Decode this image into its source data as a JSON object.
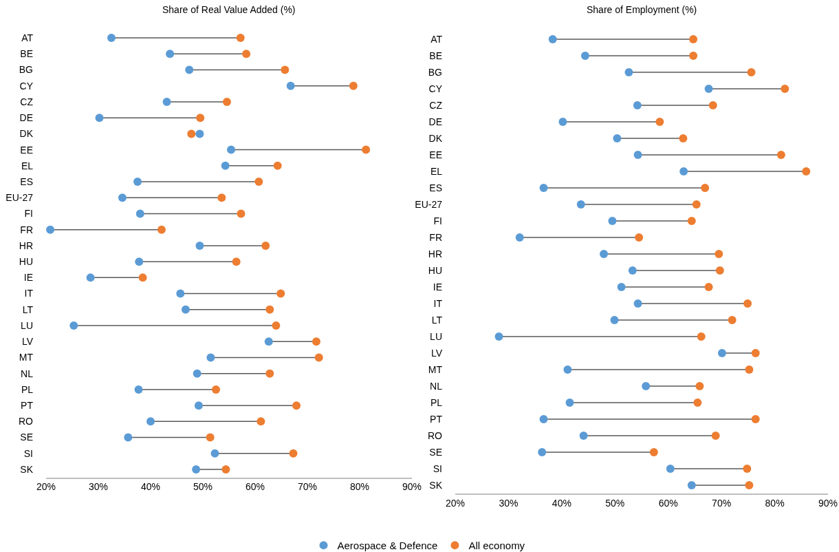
{
  "chart_data": [
    {
      "type": "scatter",
      "orientation": "horizontal",
      "title": "Share of Real Value Added (%)",
      "marker": "circle",
      "grid": false,
      "legend": "bottom",
      "xlim": [
        20,
        90
      ],
      "xticks": [
        {
          "value": 20,
          "label": "20%"
        },
        {
          "value": 30,
          "label": "30%"
        },
        {
          "value": 40,
          "label": "40%"
        },
        {
          "value": 50,
          "label": "50%"
        },
        {
          "value": 60,
          "label": "60%"
        },
        {
          "value": 70,
          "label": "70%"
        },
        {
          "value": 80,
          "label": "80%"
        },
        {
          "value": 90,
          "label": "90%"
        }
      ],
      "categories": [
        "AT",
        "BE",
        "BG",
        "CY",
        "CZ",
        "DE",
        "DK",
        "EE",
        "EL",
        "ES",
        "EU-27",
        "FI",
        "FR",
        "HR",
        "HU",
        "IE",
        "IT",
        "LT",
        "LU",
        "LV",
        "MT",
        "NL",
        "PL",
        "PT",
        "RO",
        "SE",
        "SI",
        "SK"
      ],
      "series": [
        {
          "name": "Aerospace & Defence",
          "color": "#5b9bd5",
          "values": [
            32.5,
            43.7,
            47.4,
            66.8,
            43.1,
            30.2,
            49.4,
            55.4,
            54.3,
            37.5,
            34.6,
            38.0,
            20.8,
            49.4,
            37.8,
            28.5,
            45.7,
            46.7,
            25.3,
            62.6,
            51.5,
            48.9,
            37.7,
            49.2,
            40.0,
            35.7,
            52.3,
            48.7
          ]
        },
        {
          "name": "All economy",
          "color": "#ed7d31",
          "values": [
            57.2,
            58.3,
            65.7,
            78.8,
            54.6,
            49.5,
            47.8,
            81.2,
            64.3,
            60.7,
            53.6,
            57.3,
            42.1,
            62.0,
            56.4,
            38.5,
            64.9,
            62.8,
            64.0,
            71.7,
            72.2,
            62.8,
            52.5,
            67.9,
            61.1,
            51.4,
            67.3,
            54.4
          ]
        }
      ]
    },
    {
      "type": "scatter",
      "orientation": "horizontal",
      "title": "Share of Employment (%)",
      "marker": "circle",
      "grid": false,
      "legend": "bottom",
      "xlim": [
        20,
        90
      ],
      "xticks": [
        {
          "value": 20,
          "label": "20%"
        },
        {
          "value": 30,
          "label": "30%"
        },
        {
          "value": 40,
          "label": "40%"
        },
        {
          "value": 50,
          "label": "50%"
        },
        {
          "value": 60,
          "label": "60%"
        },
        {
          "value": 70,
          "label": "70%"
        },
        {
          "value": 80,
          "label": "80%"
        },
        {
          "value": 90,
          "label": "90%"
        }
      ],
      "categories": [
        "AT",
        "BE",
        "BG",
        "CY",
        "CZ",
        "DE",
        "DK",
        "EE",
        "EL",
        "ES",
        "EU-27",
        "FI",
        "FR",
        "HR",
        "HU",
        "IE",
        "IT",
        "LT",
        "LU",
        "LV",
        "MT",
        "NL",
        "PL",
        "PT",
        "RO",
        "SE",
        "SI",
        "SK"
      ],
      "series": [
        {
          "name": "Aerospace & Defence",
          "color": "#5b9bd5",
          "values": [
            38.3,
            44.4,
            52.6,
            67.6,
            54.2,
            40.2,
            50.4,
            54.3,
            62.9,
            36.6,
            43.6,
            49.5,
            32.1,
            47.9,
            53.3,
            51.2,
            54.3,
            49.9,
            28.2,
            70.1,
            41.1,
            55.8,
            41.5,
            36.6,
            44.1,
            36.3,
            60.4,
            64.4
          ]
        },
        {
          "name": "All economy",
          "color": "#ed7d31",
          "values": [
            64.7,
            64.7,
            75.6,
            81.9,
            68.4,
            58.4,
            62.8,
            81.2,
            85.9,
            66.9,
            65.3,
            64.4,
            54.5,
            69.5,
            69.7,
            67.6,
            74.9,
            72.0,
            66.2,
            76.4,
            75.2,
            65.9,
            65.5,
            76.4,
            68.9,
            57.3,
            74.8,
            75.2
          ]
        }
      ]
    }
  ]
}
